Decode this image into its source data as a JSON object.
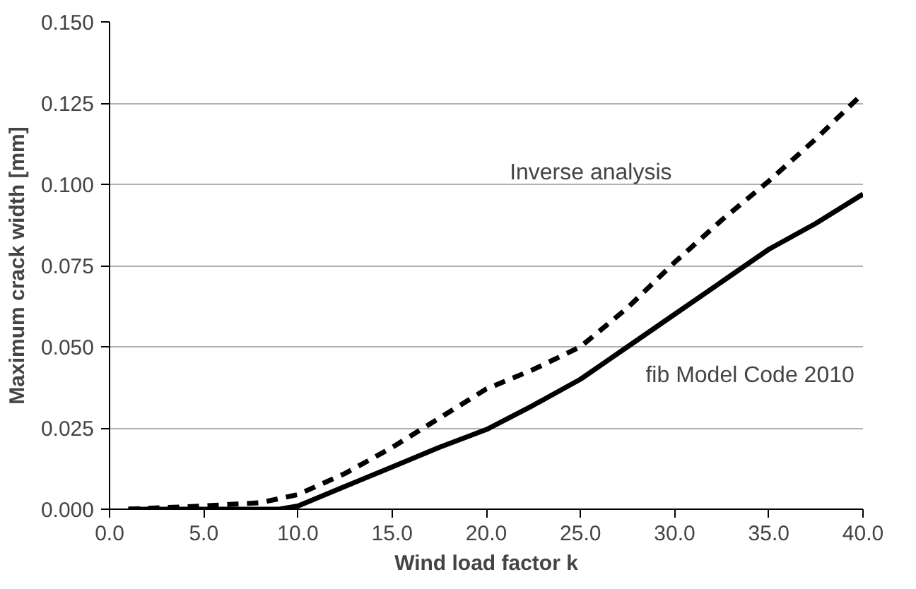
{
  "chart_data": {
    "type": "line",
    "xlabel": "Wind load factor k",
    "ylabel": "Maximum crack width [mm]",
    "xlim": [
      0,
      40
    ],
    "ylim": [
      0,
      0.15
    ],
    "xticks": [
      {
        "value": 0,
        "label": "0.0"
      },
      {
        "value": 5,
        "label": "5.0"
      },
      {
        "value": 10,
        "label": "10.0"
      },
      {
        "value": 15,
        "label": "15.0"
      },
      {
        "value": 20,
        "label": "20.0"
      },
      {
        "value": 25,
        "label": "25.0"
      },
      {
        "value": 30,
        "label": "30.0"
      },
      {
        "value": 35,
        "label": "35.0"
      },
      {
        "value": 40,
        "label": "40.0"
      }
    ],
    "yticks": [
      {
        "value": 0,
        "label": "0.000"
      },
      {
        "value": 0.025,
        "label": "0.025"
      },
      {
        "value": 0.05,
        "label": "0.050"
      },
      {
        "value": 0.075,
        "label": "0.075"
      },
      {
        "value": 0.1,
        "label": "0.100"
      },
      {
        "value": 0.125,
        "label": "0.125"
      },
      {
        "value": 0.15,
        "label": "0.150"
      }
    ],
    "grid": "y",
    "marker": "none",
    "series": [
      {
        "name": "Inverse analysis",
        "color": "#000000",
        "line_style": "dashed",
        "x": [
          1,
          5,
          8,
          10,
          12.5,
          15,
          17.5,
          20,
          22.5,
          25,
          27.5,
          30,
          32.5,
          35,
          37.5,
          40
        ],
        "values": [
          0,
          0.001,
          0.002,
          0.0045,
          0.011,
          0.019,
          0.028,
          0.037,
          0.043,
          0.05,
          0.062,
          0.076,
          0.089,
          0.101,
          0.114,
          0.128
        ]
      },
      {
        "name": "fib Model Code 2010",
        "color": "#000000",
        "line_style": "solid",
        "x": [
          1,
          5,
          8,
          9,
          10,
          12.5,
          15,
          17.5,
          20,
          22.5,
          25,
          27.5,
          30,
          32.5,
          35,
          37.5,
          40
        ],
        "values": [
          0,
          0,
          0,
          0,
          0.001,
          0.007,
          0.013,
          0.019,
          0.0245,
          0.032,
          0.04,
          0.05,
          0.06,
          0.07,
          0.08,
          0.088,
          0.097
        ]
      }
    ]
  }
}
